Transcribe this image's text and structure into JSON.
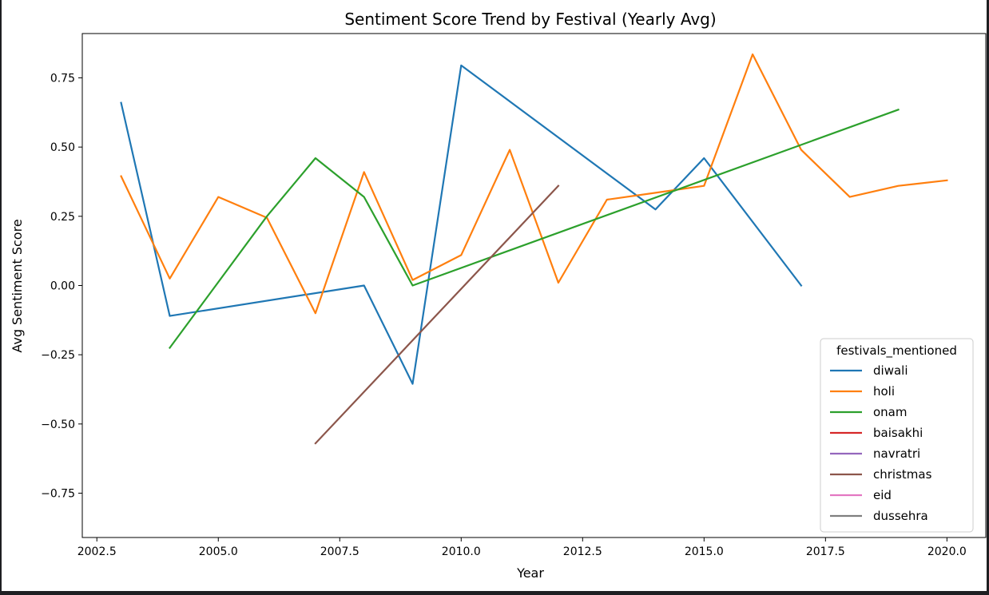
{
  "chart_data": {
    "type": "line",
    "title": "Sentiment Score Trend by Festival (Yearly Avg)",
    "xlabel": "Year",
    "ylabel": "Avg Sentiment Score",
    "xlim": [
      2002.2,
      2020.8
    ],
    "ylim": [
      -0.91,
      0.91
    ],
    "xticks": [
      2002.5,
      2005.0,
      2007.5,
      2010.0,
      2012.5,
      2015.0,
      2017.5,
      2020.0
    ],
    "xtick_labels": [
      "2002.5",
      "2005.0",
      "2007.5",
      "2010.0",
      "2012.5",
      "2015.0",
      "2017.5",
      "2020.0"
    ],
    "yticks": [
      0.75,
      0.5,
      0.25,
      0.0,
      -0.25,
      -0.5,
      -0.75
    ],
    "ytick_labels": [
      "0.75",
      "0.50",
      "0.25",
      "0.00",
      "−0.25",
      "−0.50",
      "−0.75"
    ],
    "grid": false,
    "legend_title": "festivals_mentioned",
    "legend_position": "lower-right",
    "series": [
      {
        "name": "diwali",
        "color": "#1f77b4",
        "points": [
          [
            2003,
            0.66
          ],
          [
            2004,
            -0.11
          ],
          [
            2008,
            0.0
          ],
          [
            2009,
            -0.355
          ],
          [
            2010,
            0.795
          ],
          [
            2014,
            0.275
          ],
          [
            2015,
            0.46
          ],
          [
            2017,
            0.0
          ]
        ]
      },
      {
        "name": "holi",
        "color": "#ff7f0e",
        "points": [
          [
            2003,
            0.395
          ],
          [
            2004,
            0.025
          ],
          [
            2005,
            0.32
          ],
          [
            2006,
            0.245
          ],
          [
            2007,
            -0.1
          ],
          [
            2008,
            0.41
          ],
          [
            2009,
            0.02
          ],
          [
            2010,
            0.11
          ],
          [
            2011,
            0.49
          ],
          [
            2012,
            0.01
          ],
          [
            2013,
            0.31
          ],
          [
            2014,
            0.335
          ],
          [
            2015,
            0.36
          ],
          [
            2016,
            0.835
          ],
          [
            2017,
            0.49
          ],
          [
            2018,
            0.32
          ],
          [
            2019,
            0.36
          ],
          [
            2020,
            0.38
          ]
        ]
      },
      {
        "name": "onam",
        "color": "#2ca02c",
        "points": [
          [
            2004,
            -0.225
          ],
          [
            2006,
            0.25
          ],
          [
            2007,
            0.46
          ],
          [
            2008,
            0.32
          ],
          [
            2009,
            0.0
          ],
          [
            2019,
            0.635
          ]
        ]
      },
      {
        "name": "baisakhi",
        "color": "#d62728",
        "points": []
      },
      {
        "name": "navratri",
        "color": "#9467bd",
        "points": []
      },
      {
        "name": "christmas",
        "color": "#8c564b",
        "points": [
          [
            2007,
            -0.57
          ],
          [
            2012,
            0.36
          ]
        ]
      },
      {
        "name": "eid",
        "color": "#e377c2",
        "points": []
      },
      {
        "name": "dussehra",
        "color": "#7f7f7f",
        "points": []
      }
    ]
  }
}
